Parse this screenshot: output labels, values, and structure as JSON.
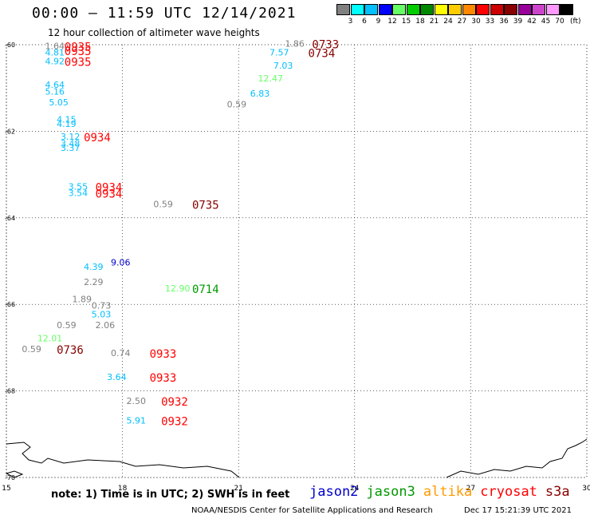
{
  "header": {
    "title": "00:00 – 11:59 UTC 12/14/2021",
    "subtitle": "12 hour collection of altimeter wave heights"
  },
  "color_scale": {
    "colors": [
      "#808080",
      "#00ffff",
      "#00bfff",
      "#0000ff",
      "#66ff66",
      "#00cc00",
      "#008800",
      "#ffff00",
      "#ffcc00",
      "#ff8800",
      "#ff0000",
      "#cc0000",
      "#880000",
      "#990099",
      "#cc44cc",
      "#ff99ff",
      "#000000"
    ],
    "labels": [
      "3",
      "6",
      "9",
      "12",
      "15",
      "18",
      "21",
      "24",
      "27",
      "30",
      "33",
      "36",
      "39",
      "42",
      "45",
      "70"
    ],
    "unit": "(ft)"
  },
  "footer": {
    "note": "note: 1) Time is in UTC; 2) SWH is in feet",
    "credit": "NOAA/NESDIS Center for Satellite Applications and Research",
    "stamp": "Dec 17 15:21:39 UTC 2021",
    "missions": [
      {
        "name": "jason2",
        "color": "#0000cc"
      },
      {
        "name": "jason3",
        "color": "#009900"
      },
      {
        "name": "altika",
        "color": "#ff9900"
      },
      {
        "name": "cryosat",
        "color": "#ff0000"
      },
      {
        "name": "s3a",
        "color": "#880000"
      }
    ]
  },
  "chart_data": {
    "type": "scatter",
    "title": "00:00 – 11:59 UTC 12/14/2021",
    "subtitle": "12 hour collection of altimeter wave heights",
    "xlabel": "",
    "ylabel": "",
    "xlim": [
      15,
      30
    ],
    "ylim": [
      -70,
      -60
    ],
    "x_ticks": [
      15,
      18,
      21,
      24,
      27,
      30
    ],
    "y_ticks": [
      -60,
      -62,
      -64,
      -66,
      -68,
      -70
    ],
    "grid": true,
    "wave_heights": [
      {
        "lon": 16.0,
        "lat": -60.1,
        "label": "1.64",
        "color": "#808080"
      },
      {
        "lon": 16.0,
        "lat": -60.25,
        "label": "4.81",
        "color": "#00bfff"
      },
      {
        "lon": 16.0,
        "lat": -60.45,
        "label": "4.92",
        "color": "#00bfff"
      },
      {
        "lon": 16.0,
        "lat": -61.0,
        "label": "4.64",
        "color": "#00bfff"
      },
      {
        "lon": 16.0,
        "lat": -61.15,
        "label": "5.16",
        "color": "#00bfff"
      },
      {
        "lon": 16.1,
        "lat": -61.4,
        "label": "5.05",
        "color": "#00bfff"
      },
      {
        "lon": 16.3,
        "lat": -61.8,
        "label": "4.15",
        "color": "#00bfff"
      },
      {
        "lon": 16.3,
        "lat": -61.9,
        "label": "4.19",
        "color": "#00bfff"
      },
      {
        "lon": 16.4,
        "lat": -62.2,
        "label": "3.12",
        "color": "#00bfff"
      },
      {
        "lon": 16.4,
        "lat": -62.35,
        "label": "3.48",
        "color": "#00bfff"
      },
      {
        "lon": 16.4,
        "lat": -62.45,
        "label": "3.37",
        "color": "#00bfff"
      },
      {
        "lon": 16.6,
        "lat": -63.35,
        "label": "3.55",
        "color": "#00bfff"
      },
      {
        "lon": 16.6,
        "lat": -63.5,
        "label": "3.54",
        "color": "#00bfff"
      },
      {
        "lon": 18.8,
        "lat": -63.75,
        "label": "0.59",
        "color": "#808080"
      },
      {
        "lon": 17.7,
        "lat": -65.1,
        "label": "9.06",
        "color": "#0000cc"
      },
      {
        "lon": 17.0,
        "lat": -65.2,
        "label": "4.39",
        "color": "#00bfff"
      },
      {
        "lon": 17.0,
        "lat": -65.55,
        "label": "2.29",
        "color": "#808080"
      },
      {
        "lon": 16.7,
        "lat": -65.95,
        "label": "1.89",
        "color": "#808080"
      },
      {
        "lon": 17.2,
        "lat": -66.1,
        "label": "0.73",
        "color": "#808080"
      },
      {
        "lon": 17.2,
        "lat": -66.3,
        "label": "5.03",
        "color": "#00bfff"
      },
      {
        "lon": 17.3,
        "lat": -66.55,
        "label": "2.06",
        "color": "#808080"
      },
      {
        "lon": 16.3,
        "lat": -66.55,
        "label": "0.59",
        "color": "#808080"
      },
      {
        "lon": 15.8,
        "lat": -66.85,
        "label": "12.01",
        "color": "#66ff66"
      },
      {
        "lon": 15.4,
        "lat": -67.1,
        "label": "0.59",
        "color": "#808080"
      },
      {
        "lon": 17.7,
        "lat": -67.2,
        "label": "0.74",
        "color": "#808080"
      },
      {
        "lon": 17.6,
        "lat": -67.75,
        "label": "3.64",
        "color": "#00bfff"
      },
      {
        "lon": 18.1,
        "lat": -68.3,
        "label": "2.50",
        "color": "#808080"
      },
      {
        "lon": 18.1,
        "lat": -68.75,
        "label": "5.91",
        "color": "#00bfff"
      },
      {
        "lon": 19.1,
        "lat": -65.7,
        "label": "12.90",
        "color": "#66ff66"
      },
      {
        "lon": 20.7,
        "lat": -61.45,
        "label": "0.59",
        "color": "#808080"
      },
      {
        "lon": 21.3,
        "lat": -61.2,
        "label": "6.83",
        "color": "#00bfff"
      },
      {
        "lon": 21.5,
        "lat": -60.85,
        "label": "12.47",
        "color": "#66ff66"
      },
      {
        "lon": 21.9,
        "lat": -60.55,
        "label": "7.03",
        "color": "#00bfff"
      },
      {
        "lon": 21.8,
        "lat": -60.25,
        "label": "7.57",
        "color": "#00bfff"
      },
      {
        "lon": 22.2,
        "lat": -60.05,
        "label": "1.86",
        "color": "#808080"
      }
    ],
    "pass_times": [
      {
        "lon": 16.5,
        "lat": -60.1,
        "label": "0935",
        "color": "#ff0000"
      },
      {
        "lon": 16.5,
        "lat": -60.2,
        "label": "0935",
        "color": "#ff0000"
      },
      {
        "lon": 16.5,
        "lat": -60.45,
        "label": "0935",
        "color": "#ff0000"
      },
      {
        "lon": 17.0,
        "lat": -62.2,
        "label": "0934",
        "color": "#ff0000"
      },
      {
        "lon": 17.3,
        "lat": -63.35,
        "label": "0934",
        "color": "#ff0000"
      },
      {
        "lon": 17.3,
        "lat": -63.5,
        "label": "0934",
        "color": "#ff0000"
      },
      {
        "lon": 19.8,
        "lat": -63.75,
        "label": "0735",
        "color": "#880000"
      },
      {
        "lon": 19.8,
        "lat": -65.7,
        "label": "0714",
        "color": "#009900"
      },
      {
        "lon": 16.3,
        "lat": -67.1,
        "label": "0736",
        "color": "#880000"
      },
      {
        "lon": 18.7,
        "lat": -67.2,
        "label": "0933",
        "color": "#ff0000"
      },
      {
        "lon": 18.7,
        "lat": -67.75,
        "label": "0933",
        "color": "#ff0000"
      },
      {
        "lon": 19.0,
        "lat": -68.3,
        "label": "0932",
        "color": "#ff0000"
      },
      {
        "lon": 19.0,
        "lat": -68.75,
        "label": "0932",
        "color": "#ff0000"
      },
      {
        "lon": 22.9,
        "lat": -60.05,
        "label": "0733",
        "color": "#880000"
      },
      {
        "lon": 22.8,
        "lat": -60.25,
        "label": "0734",
        "color": "#880000"
      }
    ]
  }
}
